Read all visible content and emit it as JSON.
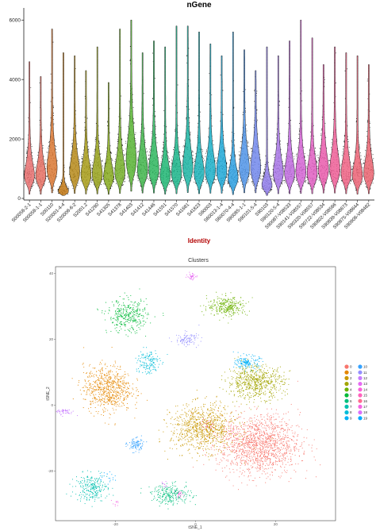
{
  "violin": {
    "title": "nGene",
    "xlabel": "Identity",
    "ylim": [
      0,
      6300
    ],
    "yticks": [
      0,
      2000,
      4000,
      6000
    ],
    "chart_data": {
      "type": "violin",
      "title": "nGene",
      "xlabel": "Identity",
      "ylabel": "",
      "ylim": [
        0,
        6300
      ],
      "categories": [
        "S00058-2-1",
        "S00058-1-1",
        "S00110",
        "S20001-4-4",
        "S20008-6-2",
        "S2001.2",
        "S41290",
        "S41305",
        "S41378",
        "S41403",
        "S41412",
        "S41446",
        "S41551",
        "S41570",
        "S41681",
        "S41823",
        "S60003",
        "S60013-1-4",
        "S60070-4-4",
        "S90085-1-1",
        "S90101-5-4",
        "S90103",
        "S90120-5-4",
        "S90087-V08533",
        "S90141-V08557",
        "S90320-V08557",
        "S90722-V08534",
        "S90802-V08566",
        "S90839-V08673",
        "S90875-V08644",
        "S90906-V08482"
      ],
      "colors": [
        "#E86E6E",
        "#E56F61",
        "#D97731",
        "#C97F1B",
        "#B68A1A",
        "#A79B18",
        "#96A11A",
        "#86A91D",
        "#74AF29",
        "#57B332",
        "#40B44A",
        "#2DB65E",
        "#1FB673",
        "#1AB58A",
        "#1BB4A2",
        "#1AB2B7",
        "#1AAFC8",
        "#1FA8D7",
        "#2B9FE0",
        "#4F93E6",
        "#7187EB",
        "#8F7DEA",
        "#A774E5",
        "#BF6ADE",
        "#D363D3",
        "#DF5EC1",
        "#E95BAC",
        "#EE5E97",
        "#EE6184",
        "#EC6375",
        "#EA6370"
      ],
      "medians": [
        950,
        950,
        1250,
        300,
        1100,
        980,
        1000,
        900,
        1100,
        1600,
        1200,
        1200,
        950,
        1050,
        1300,
        1050,
        1150,
        1150,
        850,
        1250,
        1250,
        550,
        1050,
        1050,
        1100,
        1050,
        1200,
        1200,
        1050,
        950,
        1050
      ],
      "maxes": [
        4600,
        4100,
        5700,
        4900,
        4800,
        4300,
        5100,
        3900,
        5700,
        6000,
        4900,
        5300,
        5100,
        5800,
        5800,
        5600,
        5200,
        4800,
        5600,
        5000,
        4300,
        5100,
        4800,
        5300,
        6000,
        5400,
        4500,
        5100,
        4900,
        4800,
        4500
      ]
    }
  },
  "tsne": {
    "title": "Clusters",
    "xlabel": "tSNE_1",
    "ylabel": "tSNE_2",
    "xticks": [
      -20,
      0,
      20
    ],
    "yticks": [
      -20,
      0,
      20,
      40
    ],
    "chart_data": {
      "type": "scatter",
      "title": "Clusters",
      "xlabel": "tSNE_1",
      "ylabel": "tSNE_2",
      "xlim": [
        -35,
        35
      ],
      "ylim": [
        -35,
        42
      ],
      "legend_position": "right",
      "legend": [
        "0",
        "1",
        "2",
        "3",
        "4",
        "5",
        "6",
        "7",
        "8",
        "9",
        "10",
        "11",
        "12",
        "13",
        "14",
        "15",
        "16",
        "17",
        "18",
        "19"
      ],
      "clusters": [
        {
          "name": "0",
          "color": "#F8766D",
          "center": [
            16,
            -12
          ],
          "spread": [
            10,
            9
          ],
          "n": 1400
        },
        {
          "name": "1",
          "color": "#E58700",
          "center": [
            -22,
            5
          ],
          "spread": [
            6,
            7
          ],
          "n": 700
        },
        {
          "name": "2",
          "color": "#C99800",
          "center": [
            2,
            -7
          ],
          "spread": [
            8,
            7
          ],
          "n": 900
        },
        {
          "name": "3",
          "color": "#A3A500",
          "center": [
            15,
            7
          ],
          "spread": [
            7,
            5
          ],
          "n": 650
        },
        {
          "name": "4",
          "color": "#6BB100",
          "center": [
            8,
            30
          ],
          "spread": [
            5,
            3
          ],
          "n": 300
        },
        {
          "name": "5",
          "color": "#00BA38",
          "center": [
            -17,
            27
          ],
          "spread": [
            5,
            5
          ],
          "n": 350
        },
        {
          "name": "6",
          "color": "#00BF7D",
          "center": [
            -6,
            -27
          ],
          "spread": [
            5,
            3
          ],
          "n": 250
        },
        {
          "name": "7",
          "color": "#00C0AF",
          "center": [
            -26,
            -25
          ],
          "spread": [
            4,
            4
          ],
          "n": 250
        },
        {
          "name": "8",
          "color": "#00BCD8",
          "center": [
            -12,
            13
          ],
          "spread": [
            3,
            4
          ],
          "n": 150
        },
        {
          "name": "9",
          "color": "#00B0F6",
          "center": [
            13,
            13
          ],
          "spread": [
            3,
            2
          ],
          "n": 150
        },
        {
          "name": "10",
          "color": "#35A2FF",
          "center": [
            -15,
            -12
          ],
          "spread": [
            2,
            2
          ],
          "n": 100
        },
        {
          "name": "11",
          "color": "#9590FF",
          "center": [
            -2,
            20
          ],
          "spread": [
            3,
            2
          ],
          "n": 100
        },
        {
          "name": "12",
          "color": "#C77CFF",
          "center": [
            -33,
            -2
          ],
          "spread": [
            3,
            1
          ],
          "n": 50
        },
        {
          "name": "13",
          "color": "#E76BF3",
          "center": [
            -1,
            39
          ],
          "spread": [
            1,
            1
          ],
          "n": 40
        },
        {
          "name": "14",
          "color": "#FA62DB",
          "center": [
            -4,
            -27
          ],
          "spread": [
            1,
            1
          ],
          "n": 20
        },
        {
          "name": "15",
          "color": "#FF62BC",
          "center": [
            3,
            -6
          ],
          "spread": [
            2,
            2
          ],
          "n": 20
        },
        {
          "name": "16",
          "color": "#FF6C91",
          "center": [
            9,
            -8
          ],
          "spread": [
            2,
            2
          ],
          "n": 20
        },
        {
          "name": "17",
          "color": "#F564E3",
          "center": [
            -20,
            -30
          ],
          "spread": [
            1,
            1
          ],
          "n": 10
        },
        {
          "name": "18",
          "color": "#DB72FB",
          "center": [
            -8,
            -24
          ],
          "spread": [
            1,
            1
          ],
          "n": 10
        },
        {
          "name": "19",
          "color": "#00A9FF",
          "center": [
            -22,
            -22
          ],
          "spread": [
            2,
            2
          ],
          "n": 20
        }
      ]
    }
  }
}
